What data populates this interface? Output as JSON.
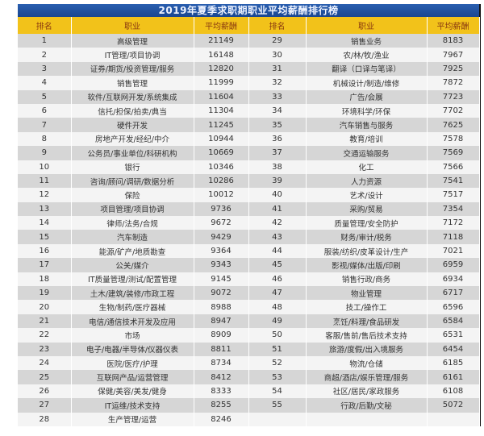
{
  "title": "2019年夏季求职期职业平均薪酬排行榜",
  "headers": {
    "rank": "排名",
    "job": "职业",
    "salary": "平均薪酬"
  },
  "colors": {
    "title_bar": "#1f4e9c",
    "header": "#f2c21a",
    "row_alt": "#d6d6d6"
  },
  "left": [
    [
      "1",
      "高级管理",
      "21149"
    ],
    [
      "2",
      "IT管理/项目协调",
      "16148"
    ],
    [
      "3",
      "证券/期货/投资管理/服务",
      "12820"
    ],
    [
      "4",
      "销售管理",
      "11999"
    ],
    [
      "5",
      "软件/互联网开发/系统集成",
      "11604"
    ],
    [
      "6",
      "信托/担保/拍卖/典当",
      "11304"
    ],
    [
      "7",
      "硬件开发",
      "11245"
    ],
    [
      "8",
      "房地产开发/经纪/中介",
      "10944"
    ],
    [
      "9",
      "公务员/事业单位/科研机构",
      "10669"
    ],
    [
      "10",
      "银行",
      "10346"
    ],
    [
      "11",
      "咨询/顾问/调研/数据分析",
      "10286"
    ],
    [
      "12",
      "保险",
      "10012"
    ],
    [
      "13",
      "项目管理/项目协调",
      "9736"
    ],
    [
      "14",
      "律师/法务/合规",
      "9672"
    ],
    [
      "15",
      "汽车制造",
      "9429"
    ],
    [
      "16",
      "能源/矿产/地质勘查",
      "9364"
    ],
    [
      "17",
      "公关/媒介",
      "9343"
    ],
    [
      "18",
      "IT质量管理/测试/配置管理",
      "9145"
    ],
    [
      "19",
      "土木/建筑/装修/市政工程",
      "9072"
    ],
    [
      "20",
      "生物/制药/医疗器械",
      "8988"
    ],
    [
      "21",
      "电信/通信技术开发及应用",
      "8947"
    ],
    [
      "22",
      "市场",
      "8909"
    ],
    [
      "23",
      "电子/电器/半导体/仪器仪表",
      "8811"
    ],
    [
      "24",
      "医院/医疗/护理",
      "8734"
    ],
    [
      "25",
      "互联网产品/运营管理",
      "8412"
    ],
    [
      "26",
      "保健/美容/美发/健身",
      "8333"
    ],
    [
      "27",
      "IT运维/技术支持",
      "8255"
    ],
    [
      "28",
      "生产管理/运营",
      "8246"
    ]
  ],
  "right": [
    [
      "29",
      "销售业务",
      "8183"
    ],
    [
      "30",
      "农/林/牧/渔业",
      "7967"
    ],
    [
      "31",
      "翻译（口译与笔译）",
      "7925"
    ],
    [
      "32",
      "机械设计/制造/维修",
      "7872"
    ],
    [
      "33",
      "广告/会展",
      "7723"
    ],
    [
      "34",
      "环境科学/环保",
      "7702"
    ],
    [
      "35",
      "汽车销售与服务",
      "7625"
    ],
    [
      "36",
      "教育/培训",
      "7578"
    ],
    [
      "37",
      "交通运输服务",
      "7569"
    ],
    [
      "38",
      "化工",
      "7566"
    ],
    [
      "39",
      "人力资源",
      "7541"
    ],
    [
      "40",
      "艺术/设计",
      "7517"
    ],
    [
      "41",
      "采购/贸易",
      "7354"
    ],
    [
      "42",
      "质量管理/安全防护",
      "7172"
    ],
    [
      "43",
      "财务/审计/税务",
      "7118"
    ],
    [
      "44",
      "服装/纺织/皮革设计/生产",
      "7021"
    ],
    [
      "45",
      "影视/媒体/出版/印刷",
      "6959"
    ],
    [
      "46",
      "销售行政/商务",
      "6934"
    ],
    [
      "47",
      "物业管理",
      "6717"
    ],
    [
      "48",
      "技工/操作工",
      "6596"
    ],
    [
      "49",
      "烹饪/料理/食品研发",
      "6584"
    ],
    [
      "50",
      "客服/售前/售后技术支持",
      "6531"
    ],
    [
      "51",
      "旅游/度假/出入境服务",
      "6454"
    ],
    [
      "52",
      "物流/仓储",
      "6185"
    ],
    [
      "53",
      "商超/酒店/娱乐管理/服务",
      "6161"
    ],
    [
      "54",
      "社区/居民/家政服务",
      "6108"
    ],
    [
      "55",
      "行政/后勤/文秘",
      "5072"
    ],
    [
      "",
      "",
      ""
    ]
  ]
}
